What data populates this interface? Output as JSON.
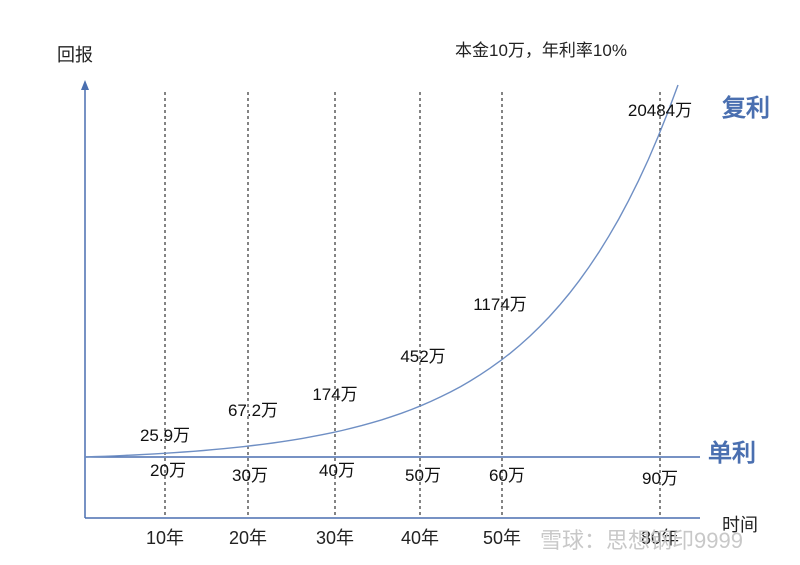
{
  "chart_data": {
    "type": "line",
    "title": "本金10万，年利率10%",
    "ylabel": "回报",
    "xlabel": "时间",
    "x_ticks": [
      "10年",
      "20年",
      "30年",
      "40年",
      "50年",
      "80年"
    ],
    "series": [
      {
        "name": "复利",
        "points": [
          {
            "year": 10,
            "label": "25.9万"
          },
          {
            "year": 20,
            "label": "67.2万"
          },
          {
            "year": 30,
            "label": "174万"
          },
          {
            "year": 40,
            "label": "452万"
          },
          {
            "year": 50,
            "label": "1174万"
          },
          {
            "year": 80,
            "label": "20484万"
          }
        ]
      },
      {
        "name": "单利",
        "points": [
          {
            "year": 10,
            "label": "20万"
          },
          {
            "year": 20,
            "label": "30万"
          },
          {
            "year": 30,
            "label": "40万"
          },
          {
            "year": 40,
            "label": "50万"
          },
          {
            "year": 50,
            "label": "60万"
          },
          {
            "year": 80,
            "label": "90万"
          }
        ]
      }
    ],
    "colors": {
      "curve": "#6f8fc4",
      "axis": "#4a6fb0",
      "series_label": "#4a6fb0",
      "guides": "#333333"
    }
  },
  "watermark": "雪球：思想钢印9999"
}
